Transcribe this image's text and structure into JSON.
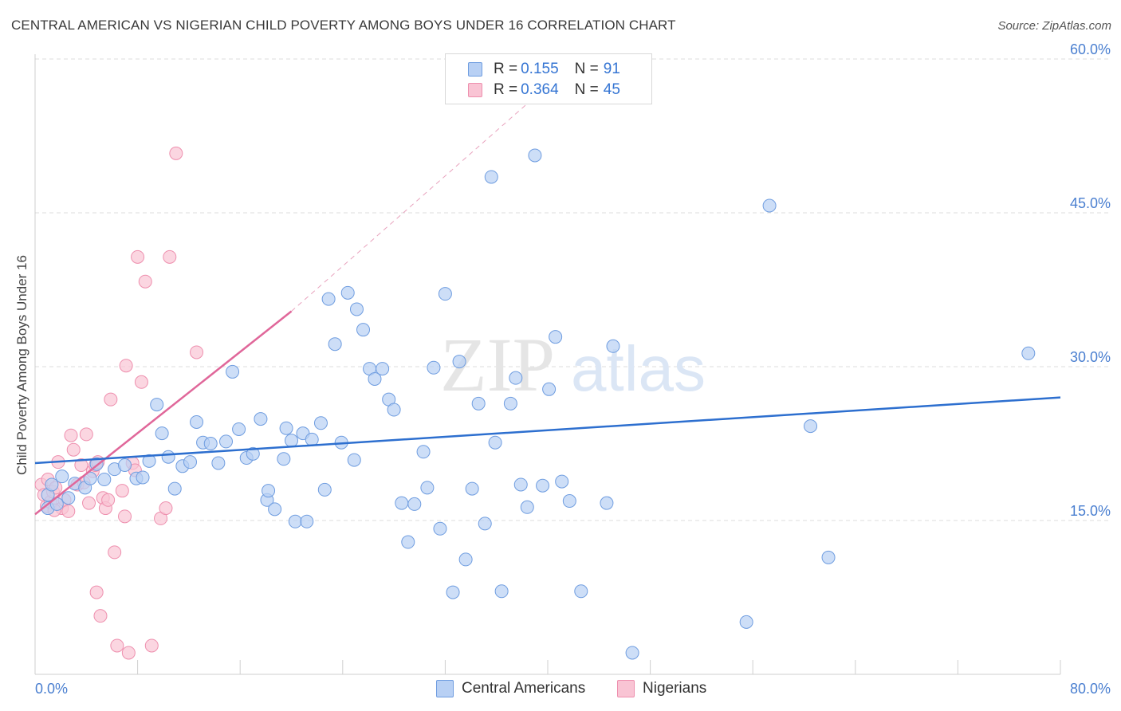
{
  "title": "CENTRAL AMERICAN VS NIGERIAN CHILD POVERTY AMONG BOYS UNDER 16 CORRELATION CHART",
  "source": "Source: ZipAtlas.com",
  "watermark": {
    "zip": "ZIP",
    "atlas": "atlas"
  },
  "legend_top": [
    {
      "r_label": "R = ",
      "r_value": "0.155",
      "n_label": "N = ",
      "n_value": "91"
    },
    {
      "r_label": "R = ",
      "r_value": "0.364",
      "n_label": "N = ",
      "n_value": "45"
    }
  ],
  "colors": {
    "blue_fill": "#b8d0f4",
    "blue_stroke": "#6f9de0",
    "blue_line": "#2d6fcf",
    "pink_fill": "#f9c4d4",
    "pink_stroke": "#ee8fae",
    "pink_line": "#e0679a",
    "grid": "#dddddd",
    "tick_label": "#4a7fd0"
  },
  "chart_data": {
    "type": "scatter",
    "title": "CENTRAL AMERICAN VS NIGERIAN CHILD POVERTY AMONG BOYS UNDER 16 CORRELATION CHART",
    "xlabel": "",
    "ylabel": "Child Poverty Among Boys Under 16",
    "xlim": [
      0,
      80
    ],
    "ylim": [
      0,
      60
    ],
    "x_tick_labels": [
      "0.0%",
      "80.0%"
    ],
    "y_ticks": [
      15,
      30,
      45,
      60
    ],
    "y_tick_labels": [
      "15.0%",
      "30.0%",
      "45.0%",
      "60.0%"
    ],
    "grid": true,
    "legend_position": "top-center",
    "series": [
      {
        "name": "Central Americans",
        "R": 0.155,
        "N": 91,
        "trend": {
          "x0": 0,
          "y0": 20.6,
          "x1": 80,
          "y1": 27.0
        },
        "points": [
          [
            1,
            16.2
          ],
          [
            1,
            17.5
          ],
          [
            1.3,
            18.5
          ],
          [
            1.7,
            16.6
          ],
          [
            2.1,
            19.3
          ],
          [
            2.6,
            17.2
          ],
          [
            3.1,
            18.6
          ],
          [
            3.9,
            18.2
          ],
          [
            4.3,
            19.1
          ],
          [
            4.8,
            20.5
          ],
          [
            5.4,
            19.0
          ],
          [
            6.2,
            20.0
          ],
          [
            7.0,
            20.4
          ],
          [
            7.9,
            19.1
          ],
          [
            8.4,
            19.2
          ],
          [
            8.9,
            20.8
          ],
          [
            9.5,
            26.3
          ],
          [
            9.9,
            23.5
          ],
          [
            10.4,
            21.2
          ],
          [
            10.9,
            18.1
          ],
          [
            11.5,
            20.3
          ],
          [
            12.1,
            20.7
          ],
          [
            12.6,
            24.6
          ],
          [
            13.1,
            22.6
          ],
          [
            13.7,
            22.5
          ],
          [
            14.3,
            20.6
          ],
          [
            14.9,
            22.7
          ],
          [
            15.4,
            29.5
          ],
          [
            15.9,
            23.9
          ],
          [
            16.5,
            21.1
          ],
          [
            17.0,
            21.5
          ],
          [
            17.6,
            24.9
          ],
          [
            18.1,
            17.0
          ],
          [
            18.2,
            17.9
          ],
          [
            18.7,
            16.1
          ],
          [
            19.4,
            21.0
          ],
          [
            19.6,
            24.0
          ],
          [
            20.0,
            22.8
          ],
          [
            20.3,
            14.9
          ],
          [
            20.9,
            23.5
          ],
          [
            21.2,
            14.9
          ],
          [
            21.6,
            22.9
          ],
          [
            22.3,
            24.5
          ],
          [
            22.6,
            18.0
          ],
          [
            22.9,
            36.6
          ],
          [
            23.4,
            32.2
          ],
          [
            23.9,
            22.6
          ],
          [
            24.4,
            37.2
          ],
          [
            24.9,
            20.9
          ],
          [
            25.1,
            35.6
          ],
          [
            25.6,
            33.6
          ],
          [
            26.1,
            29.8
          ],
          [
            26.5,
            28.8
          ],
          [
            27.1,
            29.8
          ],
          [
            27.6,
            26.8
          ],
          [
            28.0,
            25.8
          ],
          [
            28.6,
            16.7
          ],
          [
            29.1,
            12.9
          ],
          [
            29.6,
            16.6
          ],
          [
            30.3,
            21.7
          ],
          [
            30.6,
            18.2
          ],
          [
            31.1,
            29.9
          ],
          [
            31.6,
            14.2
          ],
          [
            32.0,
            37.1
          ],
          [
            32.6,
            8.0
          ],
          [
            33.1,
            30.5
          ],
          [
            33.6,
            11.2
          ],
          [
            34.1,
            18.1
          ],
          [
            34.6,
            26.4
          ],
          [
            35.1,
            14.7
          ],
          [
            35.6,
            48.5
          ],
          [
            35.9,
            22.6
          ],
          [
            36.4,
            8.1
          ],
          [
            37.1,
            26.4
          ],
          [
            37.5,
            28.9
          ],
          [
            37.9,
            18.5
          ],
          [
            38.4,
            16.3
          ],
          [
            39.0,
            50.6
          ],
          [
            39.6,
            18.4
          ],
          [
            40.1,
            27.8
          ],
          [
            40.6,
            32.9
          ],
          [
            41.1,
            18.8
          ],
          [
            41.7,
            16.9
          ],
          [
            42.6,
            8.1
          ],
          [
            44.6,
            16.7
          ],
          [
            45.1,
            32.0
          ],
          [
            46.6,
            2.1
          ],
          [
            55.5,
            5.1
          ],
          [
            57.3,
            45.7
          ],
          [
            60.5,
            24.2
          ],
          [
            61.9,
            11.4
          ],
          [
            77.5,
            31.3
          ]
        ]
      },
      {
        "name": "Nigerians",
        "R": 0.364,
        "N": 45,
        "trend": {
          "x0": 0,
          "y0": 15.6,
          "x1": 20,
          "y1": 35.4
        },
        "trend_extension": {
          "x0": 20,
          "y0": 35.4,
          "x1": 40,
          "y1": 57.4
        },
        "points": [
          [
            0.5,
            18.5
          ],
          [
            0.7,
            17.5
          ],
          [
            0.9,
            16.4
          ],
          [
            1.0,
            19.0
          ],
          [
            1.2,
            16.8
          ],
          [
            1.4,
            17.8
          ],
          [
            1.6,
            18.2
          ],
          [
            1.8,
            20.7
          ],
          [
            2.1,
            16.2
          ],
          [
            2.3,
            17.0
          ],
          [
            2.6,
            15.9
          ],
          [
            2.8,
            23.3
          ],
          [
            3.0,
            21.9
          ],
          [
            3.3,
            18.5
          ],
          [
            3.6,
            20.4
          ],
          [
            4.0,
            23.4
          ],
          [
            4.2,
            16.7
          ],
          [
            4.5,
            19.8
          ],
          [
            4.7,
            20.4
          ],
          [
            4.9,
            20.7
          ],
          [
            5.1,
            5.7
          ],
          [
            5.3,
            17.2
          ],
          [
            5.5,
            16.2
          ],
          [
            5.7,
            17.0
          ],
          [
            5.9,
            26.8
          ],
          [
            6.2,
            11.9
          ],
          [
            6.4,
            2.8
          ],
          [
            6.8,
            17.9
          ],
          [
            7.0,
            15.4
          ],
          [
            7.1,
            30.1
          ],
          [
            7.3,
            2.1
          ],
          [
            7.6,
            20.6
          ],
          [
            7.8,
            19.9
          ],
          [
            8.0,
            40.7
          ],
          [
            8.3,
            28.5
          ],
          [
            8.6,
            38.3
          ],
          [
            9.1,
            2.8
          ],
          [
            9.8,
            15.2
          ],
          [
            10.2,
            16.2
          ],
          [
            10.5,
            40.7
          ],
          [
            11.0,
            50.8
          ],
          [
            12.6,
            31.4
          ],
          [
            1.5,
            16.0
          ],
          [
            3.8,
            18.7
          ],
          [
            4.8,
            8.0
          ]
        ]
      }
    ]
  }
}
